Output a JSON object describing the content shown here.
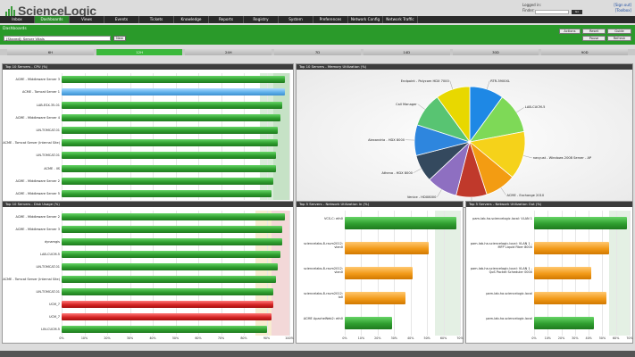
{
  "app": {
    "name": "ScienceLogic"
  },
  "user": {
    "logged_in_label": "Logged in:",
    "signout": "[Sign out]",
    "finder_label": "Finder:",
    "toolbox": "[Toolbox]",
    "go": "Go"
  },
  "nav": {
    "tabs": [
      "Inbox",
      "Dashboards",
      "Views",
      "Events",
      "Tickets",
      "Knowledge",
      "Reports",
      "Registry",
      "System",
      "Preferences",
      "Network Config",
      "Network Traffic"
    ],
    "active_index": 1
  },
  "dashboard": {
    "label": "Dashboards",
    "selected": "[Shared]: Server Vitals",
    "new_label": "New",
    "actions": [
      "Actions",
      "Reset",
      "Guide"
    ],
    "controls": [
      "Pause",
      "Refresh"
    ]
  },
  "timerange": {
    "options": [
      "6H",
      "12H",
      "24H",
      "7D",
      "14D",
      "30D",
      "90D"
    ],
    "active_index": 1
  },
  "colors": {
    "green": "#2f9e2f",
    "blue": "#5fb0ea",
    "orange": "#f29a18",
    "red": "#d62424",
    "nav_active": "#2c8a2c"
  },
  "panels": {
    "cpu": {
      "title": "Top 10 Servers - CPU (%)",
      "x_ticks": [
        "0%",
        "10%",
        "20%",
        "30%",
        "40%",
        "50%",
        "60%",
        "70%",
        "80%",
        "90%",
        "100%"
      ],
      "chart_data": {
        "type": "bar",
        "categories": [
          "ACME - Middleware Server 3",
          "ACME - Tomcat Server 1",
          "LAB-ESX-35-01",
          "ACME - Middleware Server 4",
          "LIN-TOMCAT-01",
          "ACME - Tomcat Server (Internal Site)",
          "LIN-TOMCAT-01",
          "ACME - IIS",
          "ACME - Middleware Server 2",
          "ACME - Middleware Server 5"
        ],
        "values": [
          98,
          98,
          97,
          96,
          95,
          95,
          94,
          94,
          93,
          92
        ],
        "colors": [
          "green",
          "blue",
          "green",
          "green",
          "green",
          "green",
          "green",
          "green",
          "green",
          "green"
        ],
        "xlim": [
          0,
          100
        ]
      }
    },
    "memory": {
      "title": "Top 10 Servers - Memory Utilization (%)",
      "chart_data": {
        "type": "pie",
        "labels": [
          "RTR-3900XL",
          "LAB-CUCM-5",
          "navyust - Windows 2008 Server - AP",
          "ACME - Exchange 2010",
          "Outlm - HDX 8000",
          "Venice - HDX8000",
          "Athena - HDX 8000",
          "Alexandria - HDX 8000",
          "Call Manager",
          "Endpoint - Polycom HDX 7000"
        ],
        "values": [
          10,
          12,
          14,
          9,
          9,
          9,
          8,
          9,
          10,
          10
        ],
        "colors": [
          "#1e88e5",
          "#7ed957",
          "#f5d21a",
          "#f39c12",
          "#c0392b",
          "#8e6fc1",
          "#34495e",
          "#2e86de",
          "#58c472",
          "#e8d800"
        ]
      }
    },
    "disk": {
      "title": "Top 10 Servers - Disk Usage (%)",
      "x_ticks": [
        "0%",
        "10%",
        "20%",
        "30%",
        "40%",
        "50%",
        "60%",
        "70%",
        "80%",
        "90%",
        "100%"
      ],
      "chart_data": {
        "type": "bar",
        "categories": [
          "ACME - Middleware Server 2",
          "ACME - Middleware Server 3",
          "dynamgis",
          "LAB-CUCM-5",
          "LIN-TOMCAT-01",
          "ACME - Tomcat Server (Internal Site)",
          "LIN-TOMCAT-01",
          "UCM_7",
          "UCM_7",
          "LIN-CUCM-5"
        ],
        "values": [
          98,
          97,
          97,
          96,
          95,
          94,
          93,
          93,
          92,
          90
        ],
        "colors": [
          "green",
          "green",
          "green",
          "green",
          "green",
          "green",
          "green",
          "red",
          "red",
          "green"
        ],
        "xlim": [
          0,
          100
        ]
      }
    },
    "net_in": {
      "title": "Top 5 Servers - Network Utilization In (%)",
      "x_ticks": [
        "0%",
        "10%",
        "20%",
        "30%",
        "40%",
        "50%",
        "60%",
        "70%"
      ],
      "chart_data": {
        "type": "bar",
        "categories": [
          "VCS-C: eth0",
          "sciencelabs-8-rsvm2012: vlan0",
          "sciencelabs-8-rsvm2012: vlan0",
          "sciencelabs-8-rsvm2012: lo0",
          "ACME ApacheWeb2: eth0"
        ],
        "values": [
          68,
          51,
          41,
          37,
          29
        ],
        "colors": [
          "green",
          "orange",
          "orange",
          "orange",
          "green"
        ],
        "xlim": [
          0,
          70
        ]
      }
    },
    "net_out": {
      "title": "Top 5 Servers - Network Utilization Out (%)",
      "x_ticks": [
        "0%",
        "10%",
        "20%",
        "30%",
        "40%",
        "50%",
        "60%",
        "70%"
      ],
      "chart_data": {
        "type": "bar",
        "categories": [
          "pam-lab-ha.sciencelogic.local: VLAN 1",
          "pam-lab-ha.sciencelogic.local: VLAN 1 - MFP Liquid Fiber 8000",
          "pam-lab-ha.sciencelogic.local: VLAN 1 - QoS Packet Scheduler 0000",
          "pam-lab-ha.sciencelogic.local",
          "pam-lab-ha.sciencelogic.local"
        ],
        "values": [
          68,
          55,
          42,
          53,
          44
        ],
        "colors": [
          "green",
          "orange",
          "orange",
          "orange",
          "green"
        ],
        "xlim": [
          0,
          70
        ]
      }
    }
  }
}
